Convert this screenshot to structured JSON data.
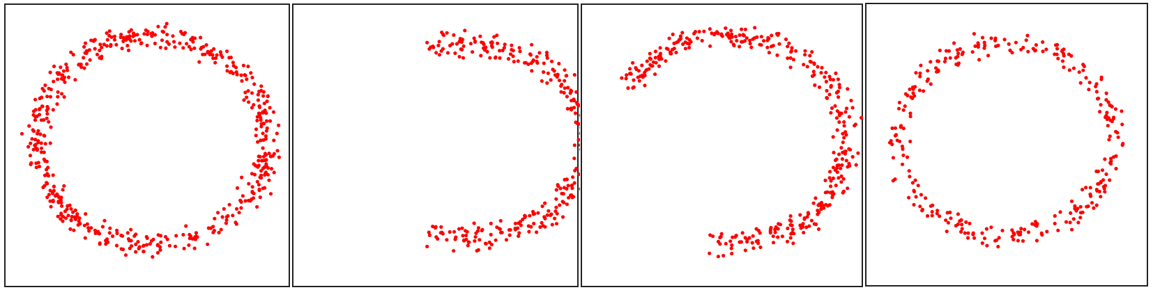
{
  "point_color": "#ff0000",
  "border_color": "#222222",
  "panels": [
    {
      "arc_deg": [
        0,
        360
      ],
      "points": 540,
      "seed": 11
    },
    {
      "arc_deg": [
        -110,
        110
      ],
      "points": 330,
      "seed": 23
    },
    {
      "arc_deg": [
        -150,
        100
      ],
      "points": 360,
      "seed": 37
    },
    {
      "arc_deg": [
        -180,
        180
      ],
      "points": 300,
      "seed": 53
    }
  ]
}
